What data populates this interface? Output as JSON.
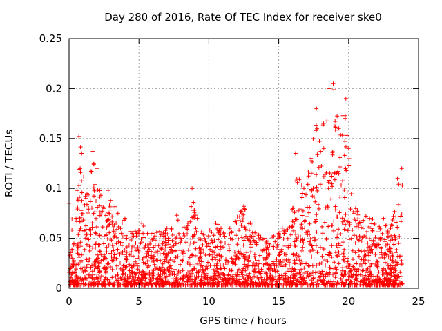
{
  "chart_data": {
    "type": "scatter",
    "title": "Day 280 of 2016, Rate Of TEC Index for receiver ske0",
    "xlabel": "GPS time / hours",
    "ylabel": "ROTI / TECUs",
    "xlim": [
      0,
      25
    ],
    "ylim": [
      0,
      0.25
    ],
    "xticks": [
      0,
      5,
      10,
      15,
      20,
      25
    ],
    "yticks": [
      0,
      0.05,
      0.1,
      0.15,
      0.2,
      0.25
    ],
    "xtick_labels": [
      "0",
      "5",
      "10",
      "15",
      "20",
      "25"
    ],
    "ytick_labels": [
      "0",
      "0.05",
      "0.1",
      "0.15",
      "0.2",
      "0.25"
    ],
    "grid": true,
    "marker": "+",
    "color": "#ff0000",
    "series": [
      {
        "name": "ROTI",
        "envelope_description": "dense cloud of points from 0 to ~23.8 h",
        "upper_envelope": [
          {
            "x": 0.0,
            "y": 0.085
          },
          {
            "x": 0.5,
            "y": 0.07
          },
          {
            "x": 0.7,
            "y": 0.152
          },
          {
            "x": 0.9,
            "y": 0.135
          },
          {
            "x": 1.2,
            "y": 0.09
          },
          {
            "x": 1.7,
            "y": 0.137
          },
          {
            "x": 2.0,
            "y": 0.12
          },
          {
            "x": 2.5,
            "y": 0.08
          },
          {
            "x": 2.8,
            "y": 0.098
          },
          {
            "x": 3.5,
            "y": 0.075
          },
          {
            "x": 4.0,
            "y": 0.07
          },
          {
            "x": 4.5,
            "y": 0.055
          },
          {
            "x": 5.2,
            "y": 0.065
          },
          {
            "x": 6.0,
            "y": 0.055
          },
          {
            "x": 7.0,
            "y": 0.06
          },
          {
            "x": 7.7,
            "y": 0.073
          },
          {
            "x": 8.5,
            "y": 0.065
          },
          {
            "x": 8.8,
            "y": 0.1
          },
          {
            "x": 9.5,
            "y": 0.055
          },
          {
            "x": 10.5,
            "y": 0.065
          },
          {
            "x": 11.5,
            "y": 0.06
          },
          {
            "x": 12.5,
            "y": 0.082
          },
          {
            "x": 13.0,
            "y": 0.065
          },
          {
            "x": 14.0,
            "y": 0.05
          },
          {
            "x": 15.0,
            "y": 0.055
          },
          {
            "x": 16.0,
            "y": 0.08
          },
          {
            "x": 16.2,
            "y": 0.135
          },
          {
            "x": 16.8,
            "y": 0.1
          },
          {
            "x": 17.3,
            "y": 0.13
          },
          {
            "x": 17.7,
            "y": 0.18
          },
          {
            "x": 18.2,
            "y": 0.165
          },
          {
            "x": 18.6,
            "y": 0.2
          },
          {
            "x": 18.9,
            "y": 0.205
          },
          {
            "x": 19.3,
            "y": 0.16
          },
          {
            "x": 19.8,
            "y": 0.19
          },
          {
            "x": 20.0,
            "y": 0.14
          },
          {
            "x": 20.5,
            "y": 0.08
          },
          {
            "x": 21.5,
            "y": 0.07
          },
          {
            "x": 22.5,
            "y": 0.07
          },
          {
            "x": 23.0,
            "y": 0.06
          },
          {
            "x": 23.5,
            "y": 0.11
          },
          {
            "x": 23.8,
            "y": 0.12
          }
        ],
        "lower_bound": 0.003,
        "x_range": [
          0,
          23.85
        ]
      }
    ]
  }
}
